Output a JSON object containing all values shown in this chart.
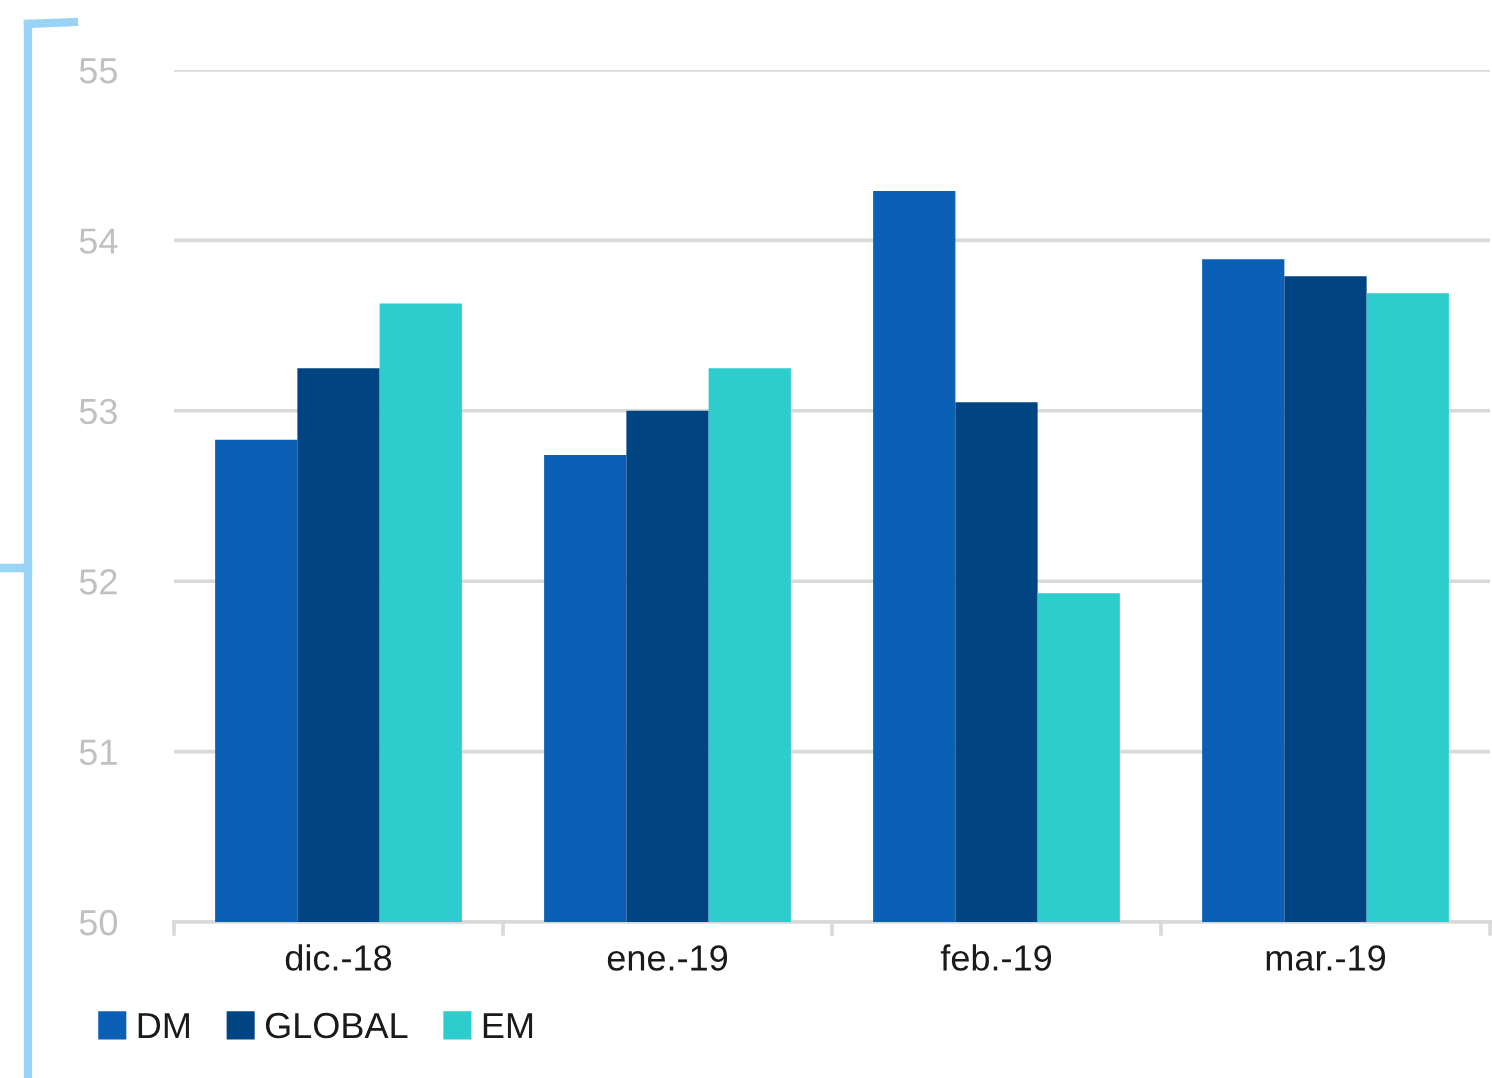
{
  "chart_data": {
    "type": "bar",
    "categories": [
      "dic.-18",
      "ene.-19",
      "feb.-19",
      "mar.-19"
    ],
    "series": [
      {
        "name": "DM",
        "color": "#0b5fb4",
        "values": [
          52.83,
          52.74,
          54.29,
          53.89
        ]
      },
      {
        "name": "GLOBAL",
        "color": "#004481",
        "values": [
          53.25,
          53.0,
          53.05,
          53.79
        ]
      },
      {
        "name": "EM",
        "color": "#2dcccd",
        "values": [
          53.63,
          53.25,
          51.93,
          53.69
        ]
      }
    ],
    "ylim": [
      50,
      55
    ],
    "yticks": [
      50,
      51,
      52,
      53,
      54,
      55
    ],
    "grid": "y",
    "legend": "bottom left"
  }
}
